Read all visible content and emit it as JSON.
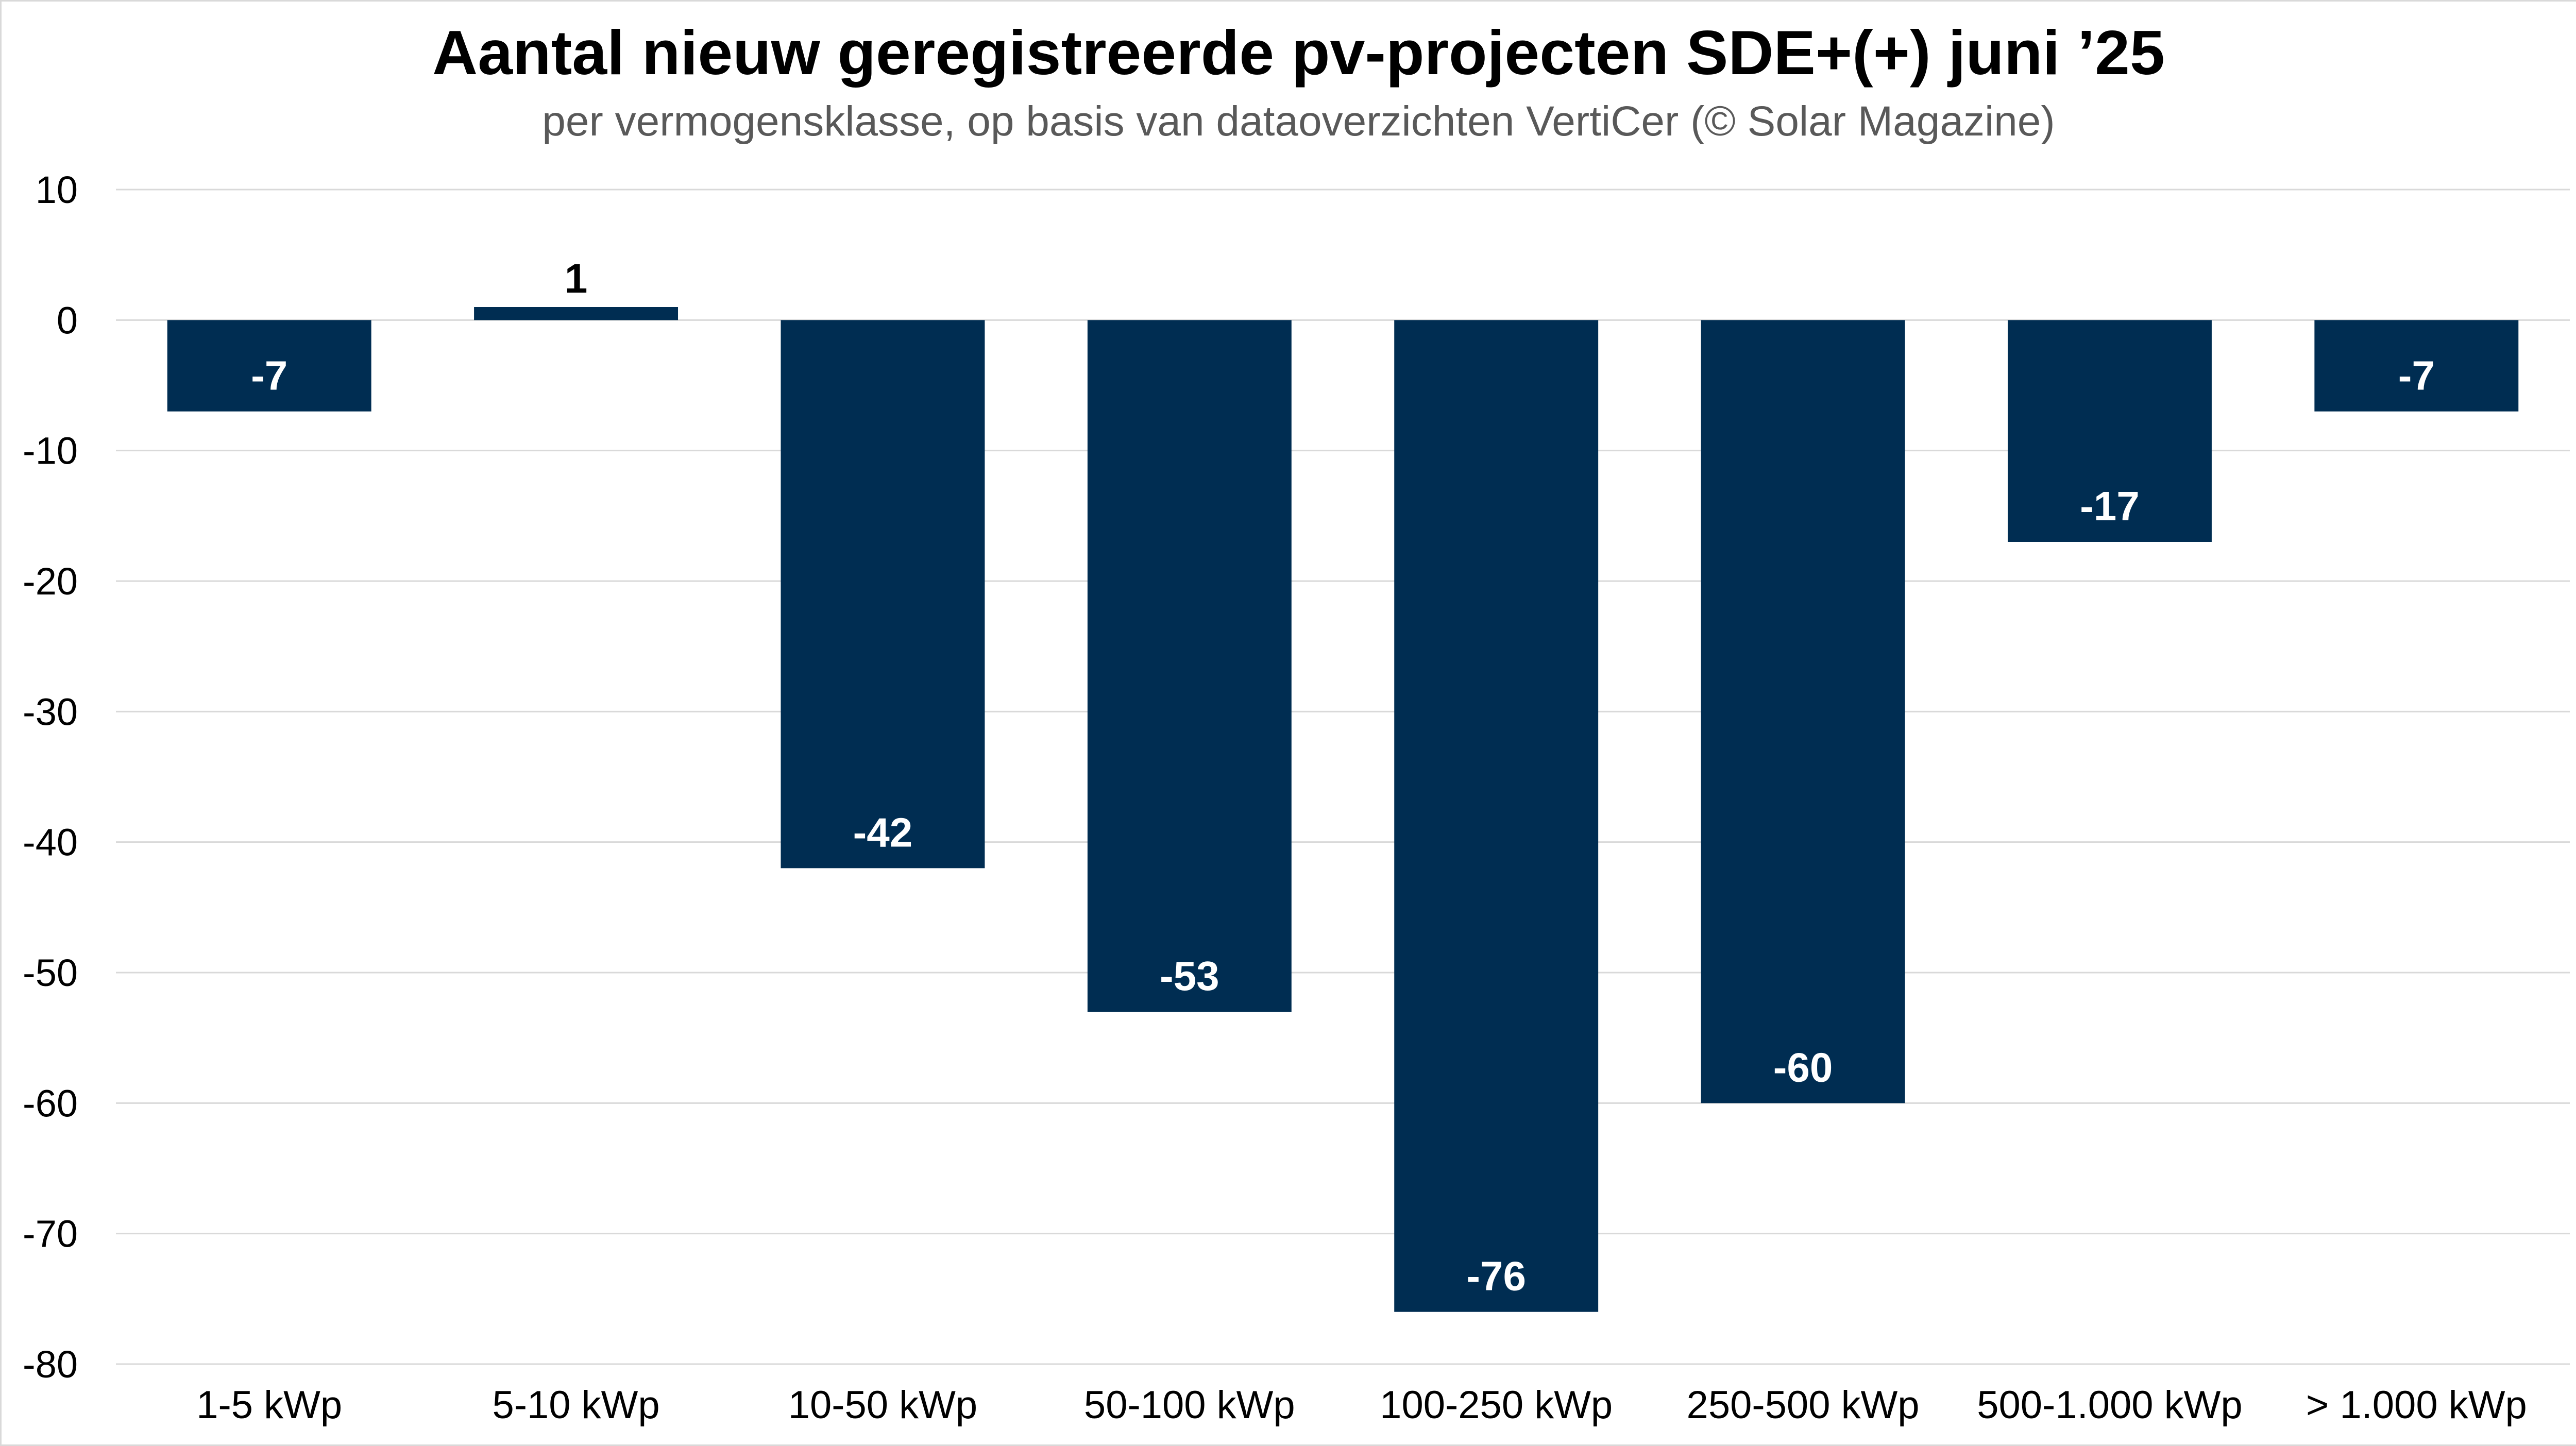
{
  "chart_data": {
    "type": "bar",
    "title": "Aantal nieuw geregistreerde pv-projecten SDE+(+) juni ’25",
    "subtitle": "per vermogensklasse, op basis van dataoverzichten VertiCer (© Solar Magazine)",
    "categories": [
      "1-5 kWp",
      "5-10 kWp",
      "10-50 kWp",
      "50-100 kWp",
      "100-250 kWp",
      "250-500 kWp",
      "500-1.000 kWp",
      "> 1.000 kWp"
    ],
    "values": [
      -7,
      1,
      -42,
      -53,
      -76,
      -60,
      -17,
      -7
    ],
    "ylim": [
      -80,
      10
    ],
    "yticks": [
      10,
      0,
      -10,
      -20,
      -30,
      -40,
      -50,
      -60,
      -70,
      -80
    ],
    "xlabel": "",
    "ylabel": "",
    "grid": true,
    "colors": {
      "bar": "#002d52",
      "grid": "#d9d9d9",
      "label_inside": "#ffffff",
      "label_outside": "#000000"
    }
  }
}
